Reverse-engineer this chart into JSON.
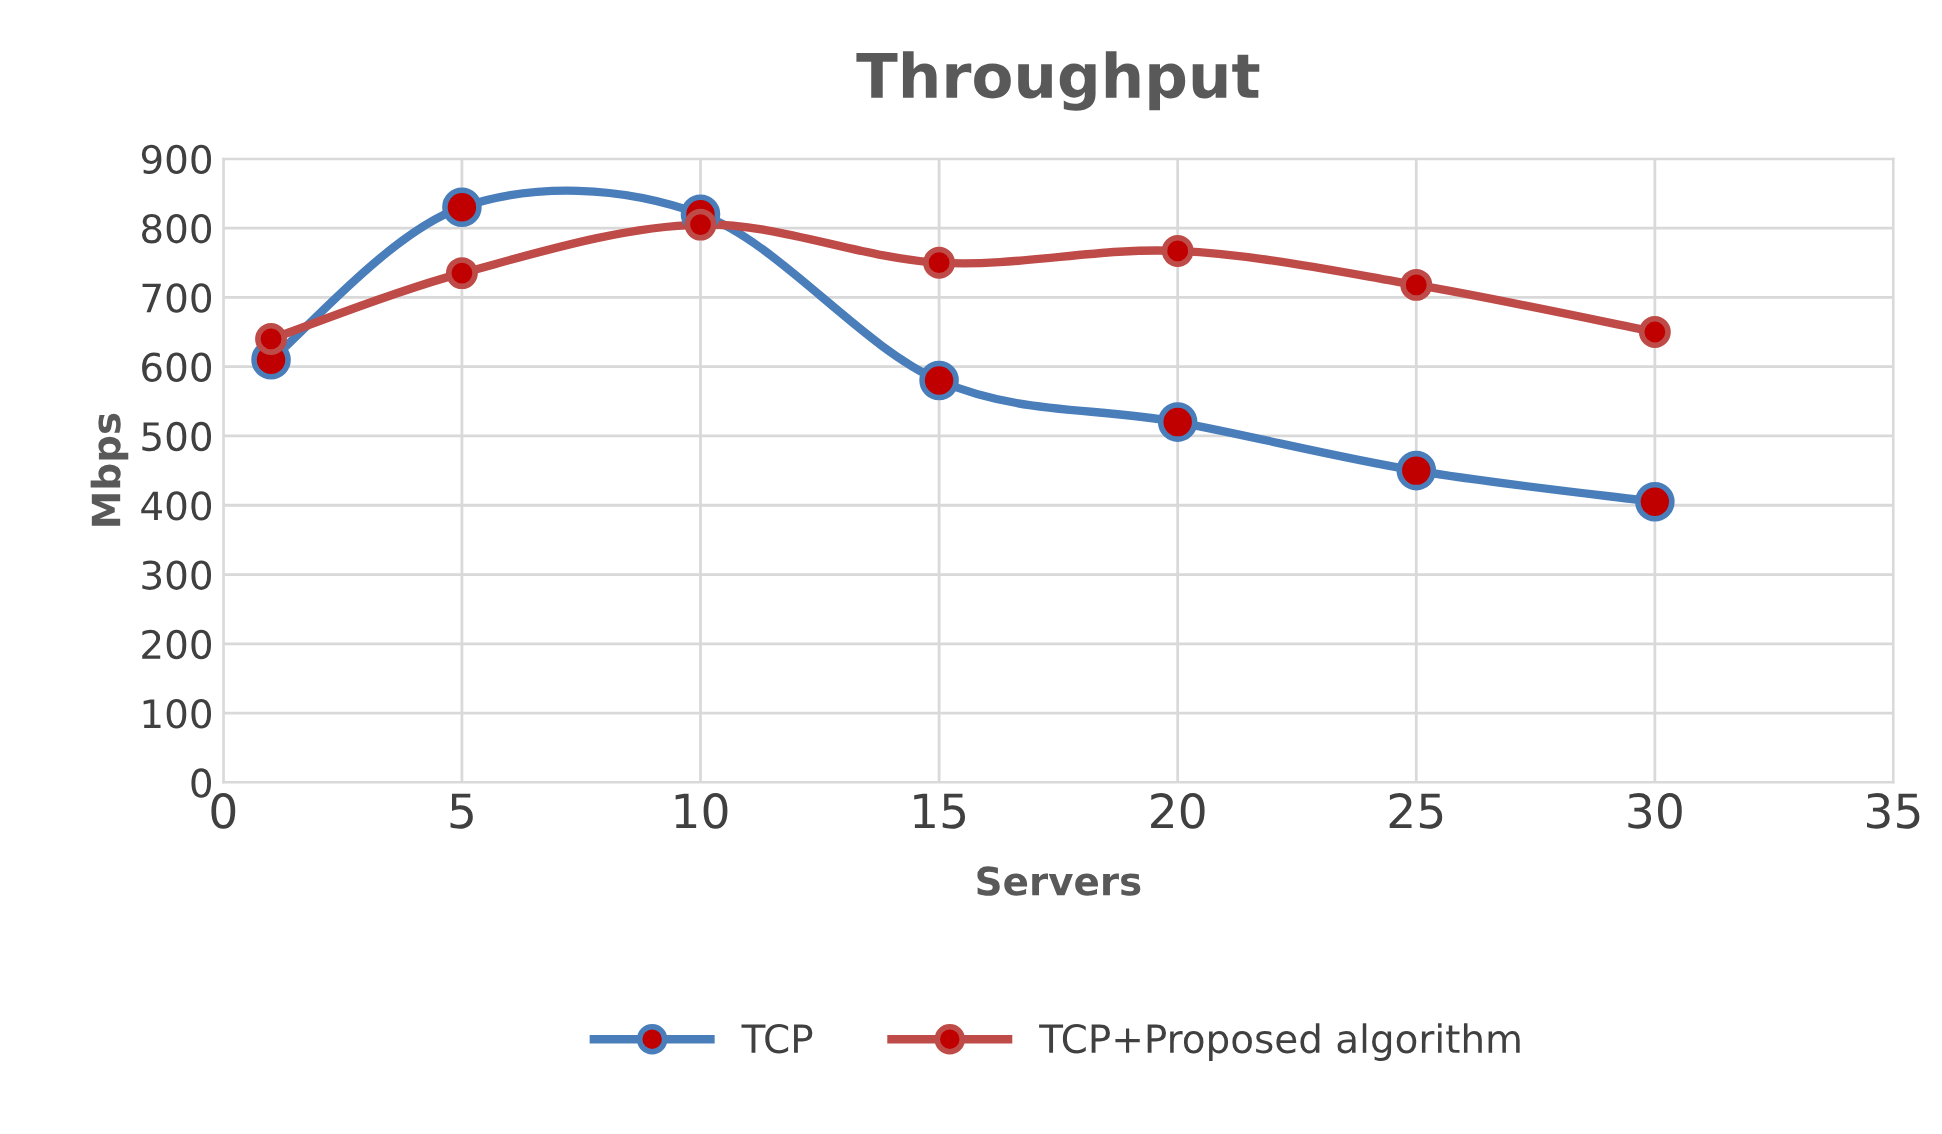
{
  "chart_data": {
    "type": "line",
    "title": "Throughput",
    "xlabel": "Servers",
    "ylabel": "Mbps",
    "x": [
      1,
      5,
      10,
      15,
      20,
      25,
      30
    ],
    "series": [
      {
        "name": "TCP",
        "color": "#4a7ebb",
        "values": [
          610,
          830,
          820,
          580,
          520,
          450,
          405
        ]
      },
      {
        "name": "TCP+Proposed algorithm",
        "color": "#be4b48",
        "values": [
          640,
          735,
          805,
          750,
          767,
          718,
          650
        ]
      }
    ],
    "xlim": [
      0,
      35
    ],
    "xticks": [
      0,
      5,
      10,
      15,
      20,
      25,
      30,
      35
    ],
    "ylim": [
      0,
      900
    ],
    "yticks": [
      0,
      100,
      200,
      300,
      400,
      500,
      600,
      700,
      800,
      900
    ],
    "grid": true,
    "legend": "bottom",
    "marker": "circle",
    "line_style": "solid"
  }
}
